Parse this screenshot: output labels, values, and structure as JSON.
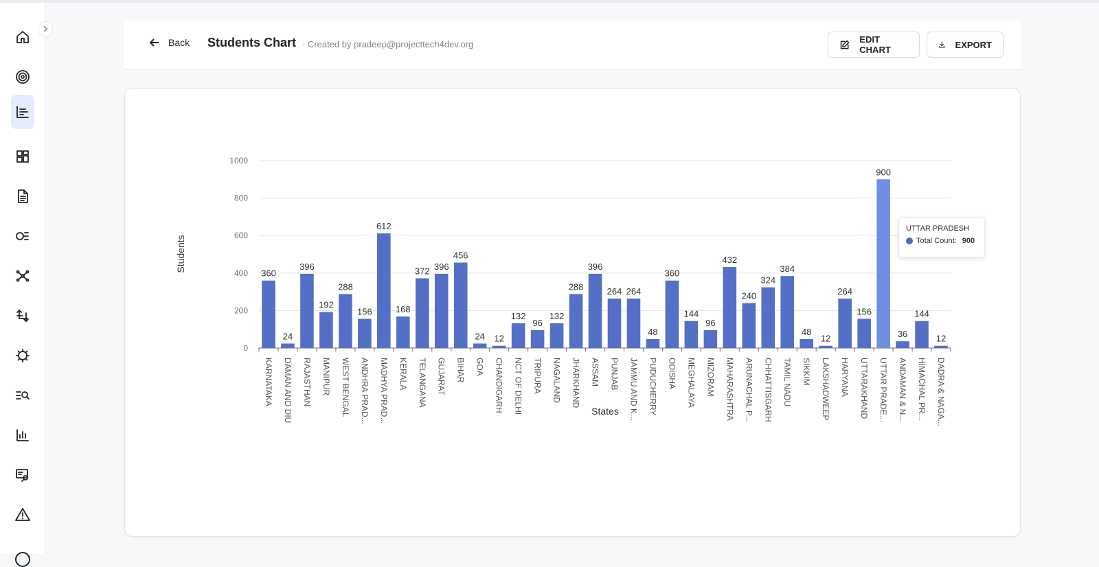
{
  "sidebar": {
    "items": [
      {
        "icon": "home-icon"
      },
      {
        "icon": "target-icon"
      },
      {
        "icon": "chart-list-icon",
        "active": true
      },
      {
        "icon": "dashboard-icon"
      },
      {
        "icon": "document-icon"
      },
      {
        "icon": "flow-icon"
      },
      {
        "icon": "network-icon"
      },
      {
        "icon": "transform-icon"
      },
      {
        "icon": "settings-gear-icon"
      },
      {
        "icon": "search-list-icon"
      },
      {
        "icon": "bar-chart-icon"
      },
      {
        "icon": "monitor-search-icon"
      },
      {
        "icon": "warning-icon"
      }
    ]
  },
  "header": {
    "back_label": "Back",
    "title": "Students Chart",
    "creator": "· Created by pradeep@projecttech4dev.org",
    "edit_label": "EDIT CHART",
    "export_label": "EXPORT"
  },
  "tooltip": {
    "title": "UTTAR PRADESH",
    "label": "Total Count:",
    "value": "900"
  },
  "colors": {
    "bar": "#5470c6",
    "bar_highlight": "#6f8ee0",
    "accent": "#4d67c8"
  },
  "chart_data": {
    "type": "bar",
    "xlabel": "States",
    "ylabel": "Students",
    "ylim": [
      0,
      1000
    ],
    "yticks": [
      0,
      200,
      400,
      600,
      800,
      1000
    ],
    "grid": true,
    "categories": [
      "KARNATAKA",
      "DAMAN AND DIU",
      "RAJASTHAN",
      "MANIPUR",
      "WEST BENGAL",
      "ANDHRA PRAD...",
      "MADHYA PRAD...",
      "KERALA",
      "TELANGANA",
      "GUJARAT",
      "BIHAR",
      "GOA",
      "CHANDIGARH",
      "NCT OF DELHI",
      "TRIPURA",
      "NAGALAND",
      "JHARKHAND",
      "ASSAM",
      "PUNJAB",
      "JAMMU AND K...",
      "PUDUCHERRY",
      "ODISHA",
      "MEGHALAYA",
      "MIZORAM",
      "MAHARASHTRA",
      "ARUNACHAL P...",
      "CHHATTISGARH",
      "TAMIL NADU",
      "SIKKIM",
      "LAKSHADWEEP",
      "HARYANA",
      "UTTARAKHAND",
      "UTTAR PRADE...",
      "ANDAMAN & N...",
      "HIMACHAL PR...",
      "DADRA & NAGA..."
    ],
    "values": [
      360,
      24,
      396,
      192,
      288,
      156,
      612,
      168,
      372,
      396,
      456,
      24,
      12,
      132,
      96,
      132,
      288,
      396,
      264,
      264,
      48,
      360,
      144,
      96,
      432,
      240,
      324,
      384,
      48,
      12,
      264,
      156,
      900,
      36,
      144,
      12
    ],
    "highlight_index": 32
  }
}
